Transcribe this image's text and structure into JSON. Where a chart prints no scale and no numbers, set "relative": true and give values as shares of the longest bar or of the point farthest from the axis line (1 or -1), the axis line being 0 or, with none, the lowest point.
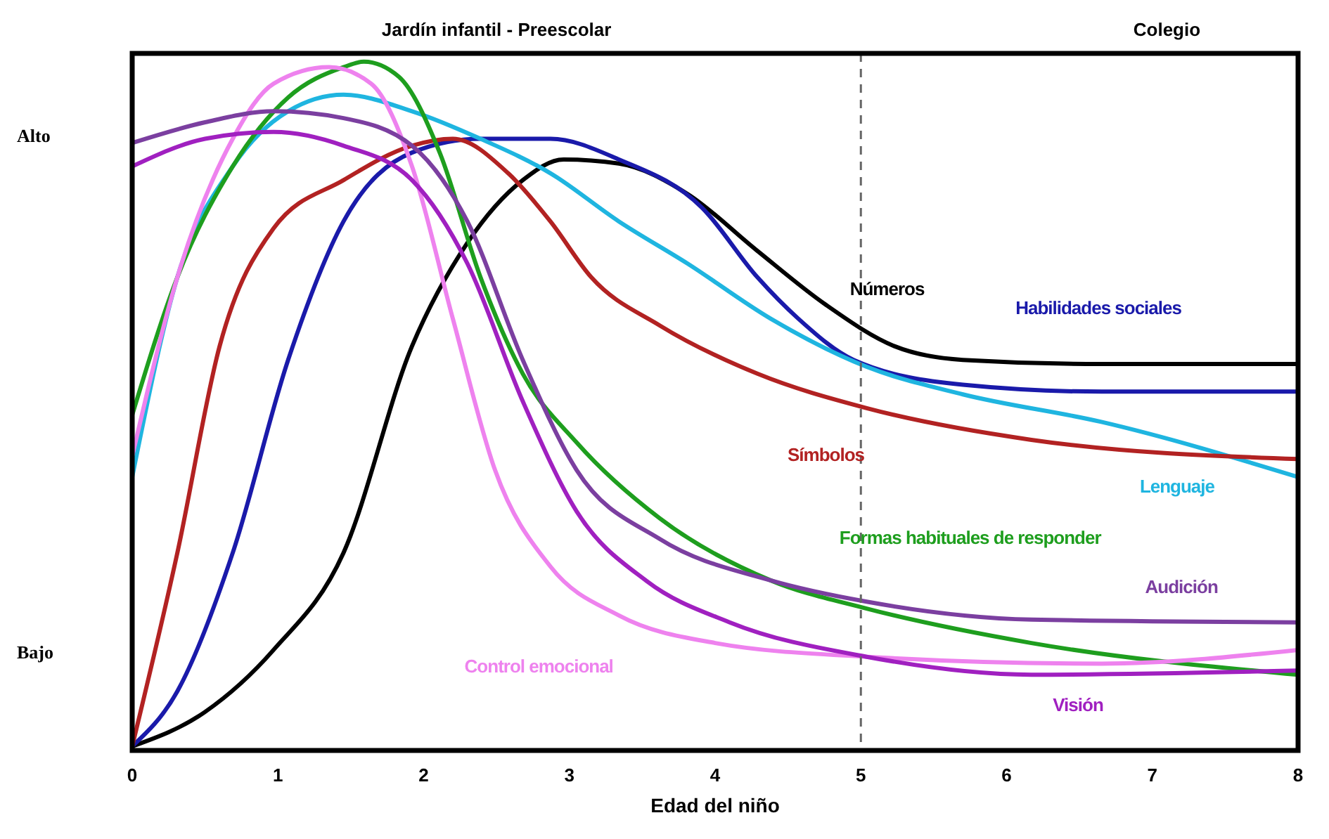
{
  "chart_data": {
    "type": "line",
    "relative": true,
    "xlabel": "Edad del niño",
    "xlim": [
      0,
      8
    ],
    "xticks": [
      0,
      1,
      2,
      3,
      4,
      5,
      6,
      7,
      8
    ],
    "annotations": [
      "Jardín infantil - Preescolar",
      "Colegio",
      "Alto",
      "Bajo"
    ],
    "legend": false,
    "marker": "none",
    "line_style": "solid",
    "ref_lines": [
      {
        "axis": "x",
        "value": 5,
        "color": "#666666",
        "line_style": "dashed"
      }
    ],
    "series": [
      {
        "name": "Números",
        "color": "#000000",
        "x": [
          0,
          0.5,
          0.97,
          1.45,
          1.92,
          2.3,
          2.68,
          2.96,
          3.34,
          3.81,
          4.28,
          4.76,
          5.23,
          5.7,
          6.65,
          8
        ],
        "values": [
          0.006,
          0.056,
          0.146,
          0.287,
          0.587,
          0.737,
          0.828,
          0.858,
          0.852,
          0.808,
          0.727,
          0.647,
          0.587,
          0.567,
          0.561,
          0.561
        ]
      },
      {
        "name": "Habilidades sociales",
        "color": "#1a1aaa",
        "x": [
          0,
          0.31,
          0.69,
          1.07,
          1.45,
          1.92,
          2.39,
          2.87,
          3.34,
          3.91,
          4.29,
          4.57,
          4.95,
          5.7,
          6.65,
          8
        ],
        "values": [
          0.006,
          0.086,
          0.287,
          0.567,
          0.768,
          0.868,
          0.888,
          0.888,
          0.858,
          0.788,
          0.687,
          0.627,
          0.567,
          0.531,
          0.521,
          0.521
        ]
      },
      {
        "name": "Lenguaje",
        "color": "#1fb5e0",
        "x": [
          0,
          0.31,
          0.69,
          1.07,
          1.45,
          1.92,
          2.39,
          2.87,
          3.34,
          3.81,
          4.38,
          5.04,
          5.7,
          6.65,
          8
        ],
        "values": [
          0.397,
          0.687,
          0.848,
          0.928,
          0.952,
          0.928,
          0.888,
          0.838,
          0.768,
          0.707,
          0.627,
          0.557,
          0.517,
          0.477,
          0.397
        ]
      },
      {
        "name": "Símbolos",
        "color": "#b22222",
        "x": [
          0,
          0.31,
          0.6,
          0.97,
          1.45,
          1.92,
          2.2,
          2.58,
          2.87,
          3.15,
          3.62,
          4.29,
          5.04,
          6.17,
          8
        ],
        "values": [
          0.006,
          0.287,
          0.587,
          0.758,
          0.828,
          0.878,
          0.888,
          0.838,
          0.768,
          0.687,
          0.617,
          0.547,
          0.497,
          0.451,
          0.423
        ]
      },
      {
        "name": "Formas habituales de responder",
        "color": "#1e9e1e",
        "x": [
          0,
          0.31,
          0.69,
          1.07,
          1.45,
          1.59,
          1.83,
          2.11,
          2.39,
          2.68,
          3.05,
          3.62,
          4.38,
          5.04,
          6.17,
          8
        ],
        "values": [
          0.487,
          0.687,
          0.848,
          0.948,
          0.992,
          1,
          0.978,
          0.868,
          0.687,
          0.547,
          0.447,
          0.337,
          0.247,
          0.206,
          0.156,
          0.11
        ]
      },
      {
        "name": "Control emocional",
        "color": "#ee82ee",
        "x": [
          0,
          0.31,
          0.69,
          0.97,
          1.35,
          1.64,
          1.92,
          2.2,
          2.49,
          2.87,
          3.34,
          4,
          5.04,
          6.65,
          8
        ],
        "values": [
          0.427,
          0.687,
          0.888,
          0.968,
          0.992,
          0.968,
          0.848,
          0.627,
          0.407,
          0.267,
          0.196,
          0.156,
          0.136,
          0.126,
          0.146
        ]
      },
      {
        "name": "Audición",
        "color": "#7b3fa0",
        "x": [
          0,
          0.5,
          0.97,
          1.45,
          1.92,
          2.3,
          2.68,
          3.05,
          3.62,
          4.38,
          5.04,
          6.17,
          8
        ],
        "values": [
          0.882,
          0.912,
          0.928,
          0.918,
          0.878,
          0.768,
          0.567,
          0.407,
          0.307,
          0.247,
          0.216,
          0.19,
          0.186
        ]
      },
      {
        "name": "Visión",
        "color": "#a020c0",
        "x": [
          0,
          0.5,
          0.97,
          1.45,
          1.92,
          2.3,
          2.68,
          3.05,
          3.53,
          4.1,
          5.04,
          6.17,
          8
        ],
        "values": [
          0.848,
          0.888,
          0.898,
          0.878,
          0.828,
          0.707,
          0.507,
          0.347,
          0.246,
          0.186,
          0.136,
          0.11,
          0.116
        ]
      }
    ]
  }
}
